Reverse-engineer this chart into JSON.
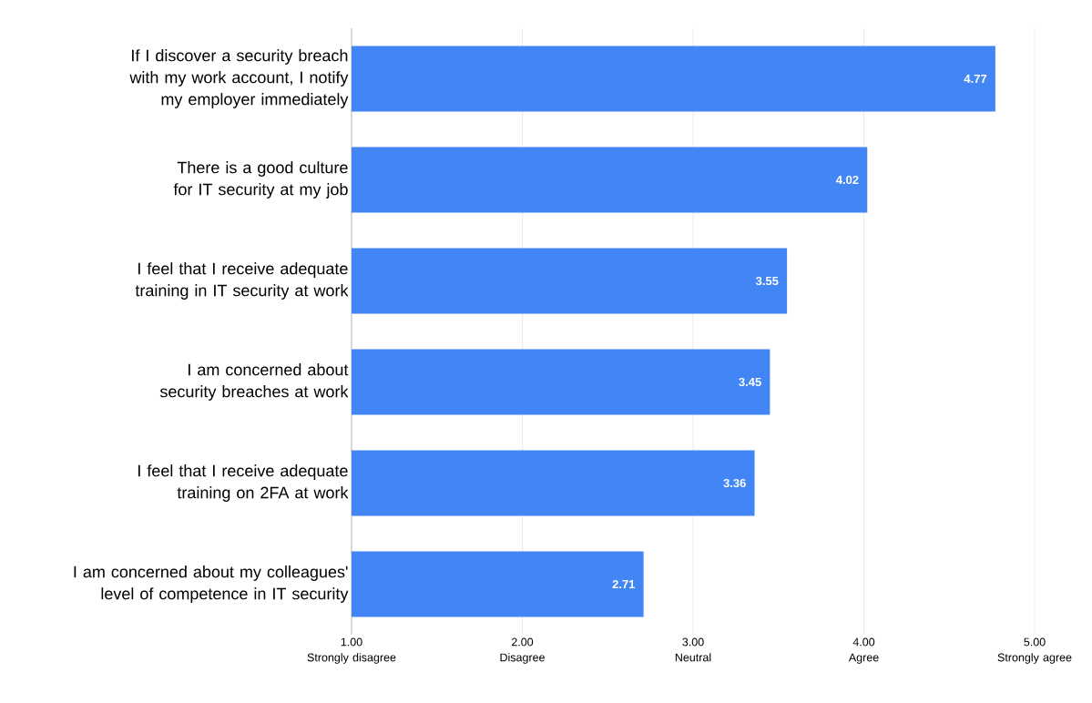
{
  "chart_data": {
    "type": "bar",
    "orientation": "horizontal",
    "categories": [
      "If I discover a security breach with my work account, I notify my employer immediately",
      "There is a good culture for IT security at my job",
      "I feel that I receive adequate training in IT security at work",
      "I am concerned about security breaches at work",
      "I feel that I receive adequate training on 2FA at work",
      "I am concerned about my colleagues' level of competence in IT security"
    ],
    "values": [
      4.77,
      4.02,
      3.55,
      3.45,
      3.36,
      2.71
    ],
    "color": "#4285f4",
    "xlim": [
      1,
      5
    ],
    "xticks": [
      {
        "value": 1,
        "label": "1.00 Strongly disagree"
      },
      {
        "value": 2,
        "label": "2.00 Disagree"
      },
      {
        "value": 3,
        "label": "3.00 Neutral"
      },
      {
        "value": 4,
        "label": "4.00 Agree"
      },
      {
        "value": 5,
        "label": "5.00 Strongly agree"
      }
    ],
    "grid": "x",
    "data_labels": true
  }
}
